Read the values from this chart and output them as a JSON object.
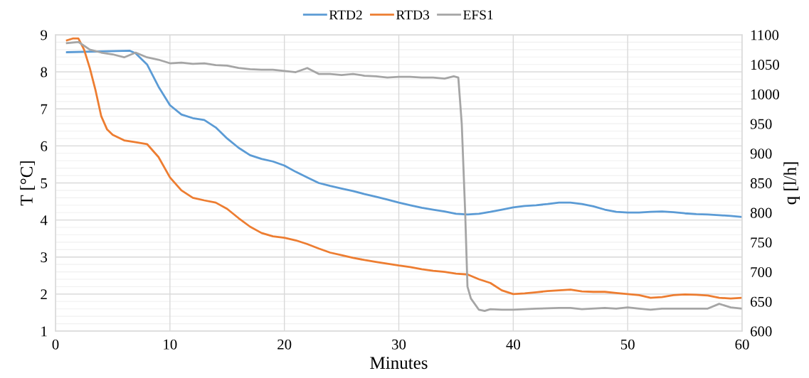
{
  "chart_data": {
    "type": "line",
    "xlabel": "Minutes",
    "ylabel": "T [°C]",
    "y2label": "q [l/h]",
    "xlim": [
      0,
      60
    ],
    "xticks": [
      0,
      10,
      20,
      30,
      40,
      50,
      60
    ],
    "ylim": [
      1,
      9
    ],
    "yticks": [
      1,
      2,
      3,
      4,
      5,
      6,
      7,
      8,
      9
    ],
    "y2lim": [
      600,
      1100
    ],
    "y2ticks": [
      600,
      650,
      700,
      750,
      800,
      850,
      900,
      950,
      1000,
      1050,
      1100
    ],
    "grid": true,
    "legend": "top",
    "marker": "none",
    "line_style": "solid",
    "series": [
      {
        "name": "RTD2",
        "color": "#5b9bd5",
        "x": [
          1,
          6.5,
          7,
          8,
          9,
          10,
          11,
          12,
          13,
          14,
          15,
          16,
          17,
          18,
          19,
          20,
          21,
          22,
          23,
          24,
          25,
          26,
          27,
          28,
          29,
          30,
          31,
          32,
          33,
          34,
          35,
          36,
          37,
          38,
          39,
          40,
          41,
          42,
          43,
          44,
          45,
          46,
          47,
          48,
          49,
          50,
          51,
          52,
          53,
          54,
          55,
          56,
          57,
          58,
          59,
          60
        ],
        "values": [
          8.53,
          8.57,
          8.5,
          8.2,
          7.6,
          7.1,
          6.85,
          6.75,
          6.7,
          6.5,
          6.2,
          5.95,
          5.75,
          5.65,
          5.58,
          5.47,
          5.3,
          5.15,
          5.0,
          4.92,
          4.85,
          4.78,
          4.7,
          4.63,
          4.55,
          4.47,
          4.4,
          4.33,
          4.28,
          4.23,
          4.17,
          4.15,
          4.17,
          4.22,
          4.28,
          4.34,
          4.38,
          4.4,
          4.43,
          4.47,
          4.47,
          4.43,
          4.37,
          4.28,
          4.22,
          4.2,
          4.2,
          4.22,
          4.23,
          4.21,
          4.18,
          4.16,
          4.15,
          4.13,
          4.11,
          4.08
        ]
      },
      {
        "name": "RTD3",
        "color": "#ed7d31",
        "x": [
          1,
          1.5,
          2,
          2.5,
          3,
          3.5,
          4,
          4.5,
          5,
          6,
          7,
          8,
          9,
          10,
          11,
          12,
          13,
          14,
          15,
          16,
          17,
          18,
          19,
          20,
          21,
          22,
          23,
          24,
          25,
          26,
          27,
          28,
          29,
          30,
          31,
          32,
          33,
          34,
          35,
          36,
          37,
          38,
          39,
          40,
          41,
          42,
          43,
          44,
          45,
          46,
          47,
          48,
          49,
          50,
          51,
          52,
          53,
          54,
          55,
          56,
          57,
          58,
          59,
          60
        ],
        "values": [
          8.85,
          8.9,
          8.9,
          8.6,
          8.1,
          7.5,
          6.8,
          6.45,
          6.3,
          6.15,
          6.1,
          6.05,
          5.7,
          5.15,
          4.8,
          4.6,
          4.53,
          4.47,
          4.3,
          4.05,
          3.82,
          3.65,
          3.56,
          3.52,
          3.45,
          3.35,
          3.23,
          3.12,
          3.05,
          2.98,
          2.92,
          2.87,
          2.82,
          2.77,
          2.73,
          2.67,
          2.63,
          2.6,
          2.55,
          2.53,
          2.4,
          2.3,
          2.1,
          2.0,
          2.02,
          2.05,
          2.08,
          2.1,
          2.12,
          2.07,
          2.06,
          2.06,
          2.03,
          2.0,
          1.97,
          1.9,
          1.92,
          1.97,
          1.99,
          1.98,
          1.96,
          1.9,
          1.88,
          1.9
        ]
      },
      {
        "name": "EFS1",
        "color": "#a5a5a5",
        "axis": "y2",
        "x": [
          1,
          2,
          3,
          4,
          5,
          6,
          7,
          8,
          9,
          10,
          11,
          12,
          13,
          14,
          15,
          16,
          17,
          18,
          19,
          20,
          21,
          22,
          23,
          24,
          25,
          26,
          27,
          28,
          29,
          30,
          31,
          32,
          33,
          34,
          34.8,
          35.2,
          35.5,
          35.8,
          36,
          36.3,
          37,
          37.5,
          38,
          39,
          40,
          42,
          44,
          45,
          46,
          48,
          49,
          50,
          51,
          52,
          53,
          55,
          57,
          58,
          59,
          60
        ],
        "values": [
          1086,
          1088,
          1075,
          1070,
          1067,
          1062,
          1070,
          1062,
          1058,
          1052,
          1053,
          1051,
          1052,
          1049,
          1048,
          1044,
          1042,
          1041,
          1041,
          1039,
          1037,
          1044,
          1034,
          1034,
          1032,
          1034,
          1031,
          1030,
          1028,
          1029,
          1029,
          1028,
          1028,
          1026,
          1030,
          1028,
          950,
          800,
          675,
          655,
          636,
          634,
          637,
          636,
          636,
          638,
          639,
          639,
          637,
          639,
          638,
          640,
          638,
          636,
          638,
          638,
          638,
          646,
          640,
          638
        ]
      }
    ]
  }
}
